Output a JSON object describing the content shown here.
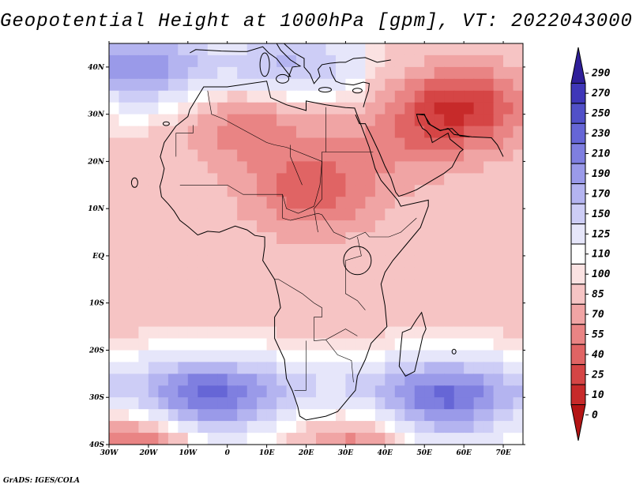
{
  "title": "Geopotential Height at 1000hPa [gpm], VT: 2022043000",
  "credit": "GrADS: IGES/COLA",
  "map": {
    "lon_range": [
      -30,
      75
    ],
    "lat_range": [
      -40,
      45
    ],
    "lon_ticks": [
      {
        "value": -30,
        "label": "30W"
      },
      {
        "value": -20,
        "label": "20W"
      },
      {
        "value": -10,
        "label": "10W"
      },
      {
        "value": 0,
        "label": "0"
      },
      {
        "value": 10,
        "label": "10E"
      },
      {
        "value": 20,
        "label": "20E"
      },
      {
        "value": 30,
        "label": "30E"
      },
      {
        "value": 40,
        "label": "40E"
      },
      {
        "value": 50,
        "label": "50E"
      },
      {
        "value": 60,
        "label": "60E"
      },
      {
        "value": 70,
        "label": "70E"
      }
    ],
    "lat_ticks": [
      {
        "value": 40,
        "label": "40N"
      },
      {
        "value": 30,
        "label": "30N"
      },
      {
        "value": 20,
        "label": "20N"
      },
      {
        "value": 10,
        "label": "10N"
      },
      {
        "value": 0,
        "label": "EQ"
      },
      {
        "value": -10,
        "label": "10S"
      },
      {
        "value": -20,
        "label": "20S"
      },
      {
        "value": -30,
        "label": "30S"
      },
      {
        "value": -40,
        "label": "40S"
      }
    ]
  },
  "colorbar": {
    "labels": [
      "290",
      "270",
      "250",
      "230",
      "210",
      "190",
      "170",
      "150",
      "125",
      "110",
      "100",
      "85",
      "70",
      "55",
      "40",
      "25",
      "10",
      "0"
    ],
    "colors": [
      "#2f1f9a",
      "#3f37b8",
      "#5150c8",
      "#6666d6",
      "#7f7fe0",
      "#9a9ae9",
      "#b4b4f0",
      "#cdcdf6",
      "#e6e6fa",
      "#ffffff",
      "#fbe2e2",
      "#f6c4c4",
      "#f0a4a4",
      "#e98484",
      "#e06464",
      "#d54545",
      "#c72a2a",
      "#b41414"
    ]
  },
  "chart_data": {
    "type": "heatmap",
    "title": "Geopotential Height at 1000hPa [gpm], VT: 2022043000",
    "variable": "Geopotential Height at 1000hPa",
    "units": "gpm",
    "valid_time": "2022043000",
    "domain": "Africa",
    "xlim": [
      -30,
      75
    ],
    "ylim": [
      -40,
      45
    ],
    "levels": [
      0,
      10,
      25,
      40,
      55,
      70,
      85,
      100,
      110,
      125,
      150,
      170,
      190,
      210,
      230,
      250,
      270,
      290
    ],
    "features": [
      {
        "name": "high-south-atlantic",
        "lon": -5,
        "lat": -31,
        "value": 190
      },
      {
        "name": "high-south-indian",
        "lon": 55,
        "lat": -32,
        "value": 190
      },
      {
        "name": "high-north-atlantic",
        "lon": -22,
        "lat": 40,
        "value": 175
      },
      {
        "name": "high-mediterranean",
        "lon": 15,
        "lat": 42,
        "value": 140
      },
      {
        "name": "low-sahel-sudan",
        "lon": 22,
        "lat": 14,
        "value": 45
      },
      {
        "name": "low-sahara",
        "lon": 5,
        "lat": 28,
        "value": 60
      },
      {
        "name": "low-persian-gulf",
        "lon": 60,
        "lat": 32,
        "value": 25
      },
      {
        "name": "low-arabia",
        "lon": 45,
        "lat": 25,
        "value": 70
      },
      {
        "name": "low-southern-ocean-west",
        "lon": -20,
        "lat": -40,
        "value": 40
      },
      {
        "name": "low-southern-ocean-east",
        "lon": 35,
        "lat": -40,
        "value": 55
      }
    ]
  }
}
